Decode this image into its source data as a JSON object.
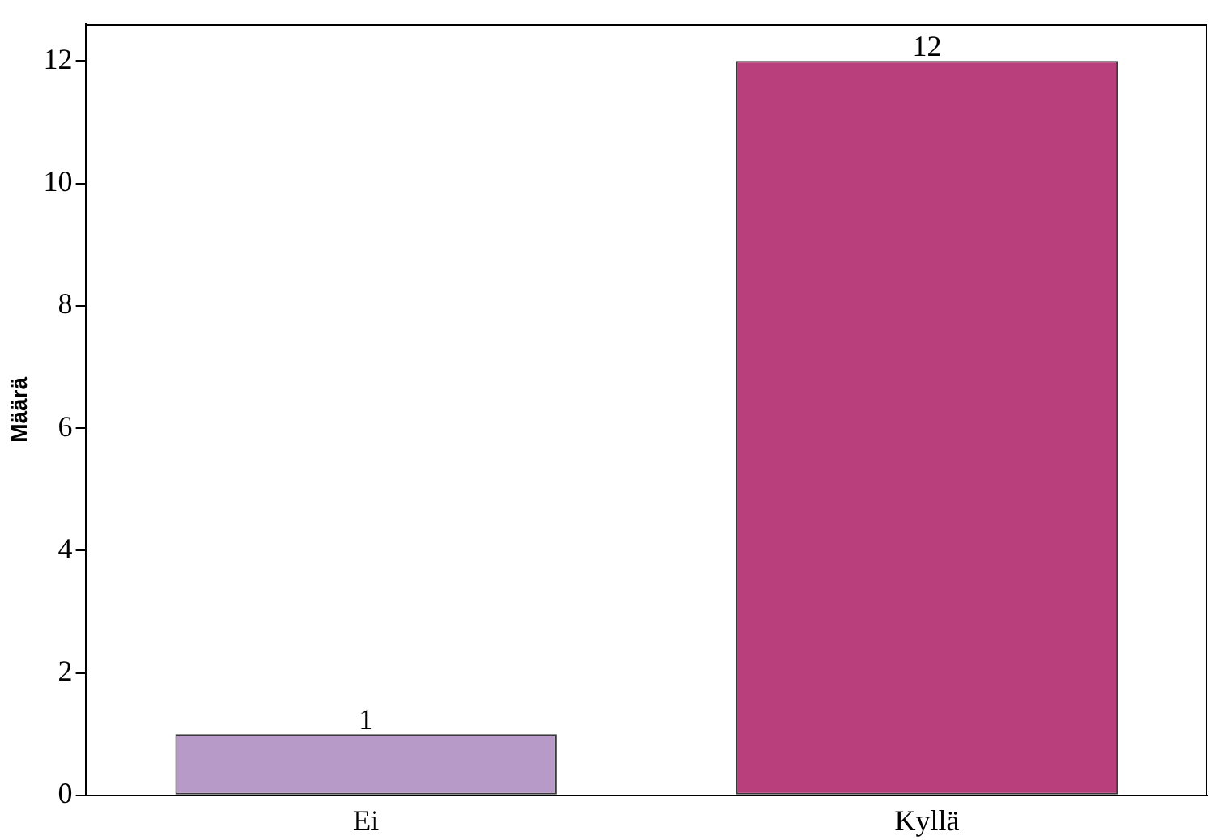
{
  "chart_data": {
    "type": "bar",
    "ylabel": "Määrä",
    "categories": [
      "Ei",
      "Kyllä"
    ],
    "values": [
      1,
      12
    ],
    "colors": [
      "#b89ac8",
      "#b83e7c"
    ],
    "ylim": [
      0,
      12.6
    ],
    "yticks": [
      0,
      2,
      4,
      6,
      8,
      10,
      12
    ],
    "grid": false,
    "legend": false,
    "data_labels": true
  }
}
